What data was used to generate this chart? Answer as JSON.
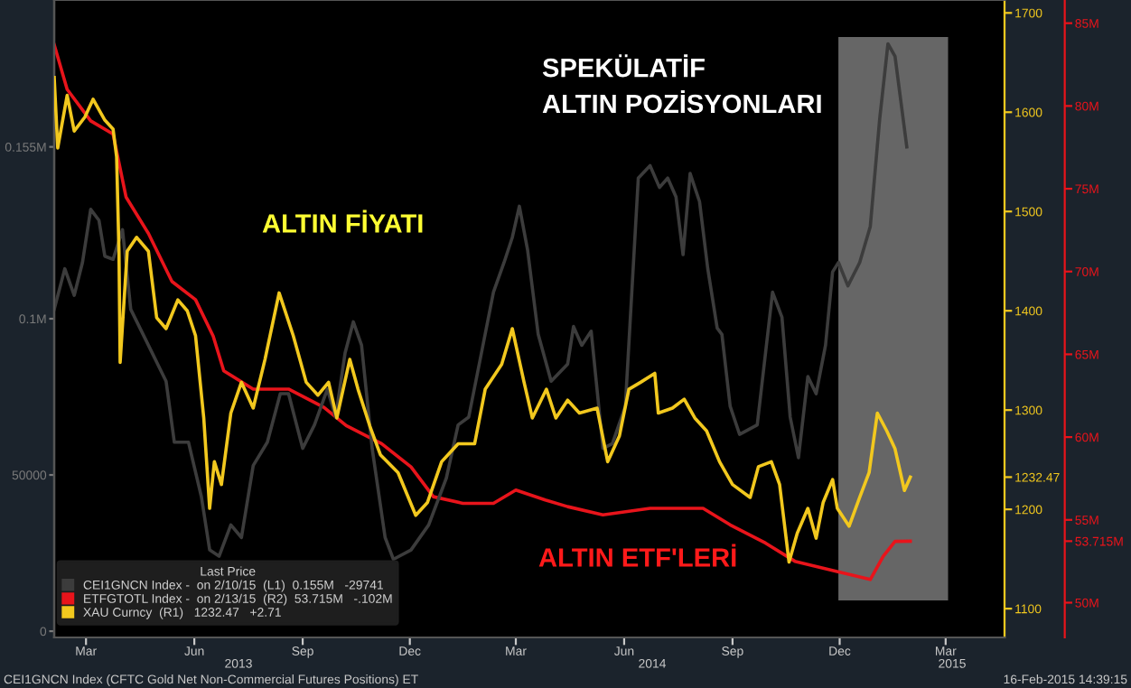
{
  "chart_data": {
    "type": "line",
    "annotations": [
      "SPEKÜLATİF\nALTIN POZİSYONLARI",
      "ALTIN FİYATI",
      "ALTIN ETF'LERİ",
      "2013",
      "2014",
      "2015",
      "CEI1GNCN Index (CFTC Gold Net Non-Commercial Futures Positions) ET",
      "16-Feb-2015 14:39:15"
    ],
    "legend": "bottom left",
    "legend_title": "Last Price",
    "xlim": [
      "2013-02-16",
      "2015-05-04"
    ],
    "xticks": [
      {
        "value": "2013-03-15",
        "label": "Mar"
      },
      {
        "value": "2013-06-15",
        "label": "Jun"
      },
      {
        "value": "2013-09-15",
        "label": "Sep"
      },
      {
        "value": "2013-12-15",
        "label": "Dec"
      },
      {
        "value": "2014-03-15",
        "label": "Mar"
      },
      {
        "value": "2014-06-15",
        "label": "Jun"
      },
      {
        "value": "2014-09-15",
        "label": "Sep"
      },
      {
        "value": "2014-12-15",
        "label": "Dec"
      },
      {
        "value": "2015-03-15",
        "label": "Mar"
      }
    ],
    "ylim": [
      -2000,
      202000
    ],
    "yticks": [
      0,
      50000,
      {
        "value": 100000,
        "label": "0.1M"
      },
      {
        "value": 155000,
        "label": "0.155M"
      }
    ],
    "y2lim": [
      1071,
      1713
    ],
    "y2ticks": [
      1100,
      1200,
      1232.47,
      1300,
      1400,
      1500,
      1600,
      1700
    ],
    "y3lim": [
      47.9,
      86.4
    ],
    "y3ticks": [
      {
        "value": 50,
        "label": "50M"
      },
      {
        "value": 53.715,
        "label": "53.715M"
      },
      {
        "value": 55,
        "label": "55M"
      },
      {
        "value": 60,
        "label": "60M"
      },
      {
        "value": 65,
        "label": "65M"
      },
      {
        "value": 70,
        "label": "70M"
      },
      {
        "value": 75,
        "label": "75M"
      },
      {
        "value": 80,
        "label": "80M"
      },
      {
        "value": 85,
        "label": "85M"
      }
    ],
    "bands": [
      {
        "axis": "x",
        "from": "2014-12-15",
        "to": "2015-03-16",
        "color": "#ffffff"
      }
    ],
    "series": [
      {
        "name": "CEI1GNCN Index -  on 2/10/15  (L1)  0.155M   -29741",
        "color": "#3c3c3c",
        "x": [
          "2013-02-16",
          "2013-02-25",
          "2013-03-05",
          "2013-03-12",
          "2013-03-19",
          "2013-03-26",
          "2013-03-31",
          "2013-04-07",
          "2013-04-15",
          "2013-04-22",
          "2013-05-07",
          "2013-05-22",
          "2013-05-29",
          "2013-06-10",
          "2013-06-21",
          "2013-06-28",
          "2013-07-06",
          "2013-07-16",
          "2013-07-25",
          "2013-08-04",
          "2013-08-16",
          "2013-08-27",
          "2013-09-03",
          "2013-09-15",
          "2013-09-25",
          "2013-10-06",
          "2013-10-13",
          "2013-10-21",
          "2013-10-28",
          "2013-11-04",
          "2013-11-13",
          "2013-11-24",
          "2013-12-01",
          "2013-12-16",
          "2013-12-31",
          "2014-01-15",
          "2014-01-25",
          "2014-02-03",
          "2014-02-13",
          "2014-02-24",
          "2014-03-05",
          "2014-03-12",
          "2014-03-18",
          "2014-03-25",
          "2014-04-03",
          "2014-04-14",
          "2014-04-28",
          "2014-05-03",
          "2014-05-10",
          "2014-05-18",
          "2014-05-28",
          "2014-06-05",
          "2014-06-16",
          "2014-06-27",
          "2014-07-07",
          "2014-07-15",
          "2014-07-22",
          "2014-07-29",
          "2014-08-04",
          "2014-08-10",
          "2014-08-18",
          "2014-08-25",
          "2014-09-02",
          "2014-09-06",
          "2014-09-13",
          "2014-09-21",
          "2014-10-06",
          "2014-10-19",
          "2014-10-27",
          "2014-11-03",
          "2014-11-10",
          "2014-11-18",
          "2014-11-25",
          "2014-12-03",
          "2014-12-09",
          "2014-12-14",
          "2014-12-22",
          "2015-01-01",
          "2015-01-10",
          "2015-01-18",
          "2015-01-25",
          "2015-01-31",
          "2015-02-10"
        ],
        "values": [
          103000,
          116000,
          107500,
          118000,
          135000,
          131500,
          120000,
          119000,
          128500,
          103000,
          91500,
          80000,
          60500,
          60500,
          43000,
          26000,
          24000,
          34000,
          30000,
          53000,
          60500,
          76000,
          76000,
          58500,
          66000,
          77500,
          68500,
          89000,
          99000,
          91500,
          58500,
          30000,
          23000,
          26000,
          34000,
          49000,
          66000,
          68500,
          87500,
          108500,
          118000,
          126000,
          136000,
          122000,
          95000,
          80000,
          85500,
          97500,
          91500,
          96000,
          58500,
          60000,
          72000,
          145000,
          149000,
          142000,
          145000,
          139000,
          120500,
          146500,
          137500,
          116000,
          97000,
          95000,
          72000,
          63000,
          66000,
          108500,
          100500,
          68500,
          55500,
          81500,
          76000,
          91500,
          115000,
          118000,
          110500,
          118000,
          129500,
          164000,
          188000,
          184000,
          155000
        ]
      },
      {
        "name": "ETFGTOTL Index -  on 2/13/15  (R2)  53.715M   -.102M",
        "color": "#e8141b",
        "axis": "y3",
        "x": [
          "2013-02-16",
          "2013-02-27",
          "2013-03-19",
          "2013-04-07",
          "2013-04-18",
          "2013-05-07",
          "2013-05-27",
          "2013-06-16",
          "2013-07-01",
          "2013-07-10",
          "2013-08-04",
          "2013-09-03",
          "2013-10-03",
          "2013-10-22",
          "2013-11-21",
          "2013-12-16",
          "2014-01-04",
          "2014-01-29",
          "2014-02-24",
          "2014-03-15",
          "2014-04-09",
          "2014-04-28",
          "2014-05-28",
          "2014-07-07",
          "2014-08-21",
          "2014-09-13",
          "2014-10-13",
          "2014-11-07",
          "2014-12-12",
          "2015-01-10",
          "2015-01-21",
          "2015-01-31",
          "2015-02-13"
        ],
        "values": [
          83.7,
          81.0,
          79.1,
          78.3,
          74.5,
          72.3,
          69.4,
          68.3,
          66.1,
          64.0,
          62.9,
          62.9,
          61.8,
          60.7,
          59.6,
          58.2,
          56.4,
          56.0,
          56.0,
          56.8,
          56.2,
          55.8,
          55.3,
          55.7,
          55.7,
          54.7,
          53.6,
          52.5,
          51.9,
          51.4,
          52.8,
          53.7,
          53.715
        ]
      },
      {
        "name": "XAU Curncy  (R1)   1232.47   +2.71",
        "color": "#f2c81e",
        "axis": "y2",
        "x": [
          "2013-02-16",
          "2013-02-19",
          "2013-02-27",
          "2013-03-05",
          "2013-03-14",
          "2013-03-21",
          "2013-03-31",
          "2013-04-07",
          "2013-04-10",
          "2013-04-12",
          "2013-04-13",
          "2013-04-19",
          "2013-04-27",
          "2013-05-07",
          "2013-05-14",
          "2013-05-22",
          "2013-06-01",
          "2013-06-09",
          "2013-06-16",
          "2013-06-23",
          "2013-06-28",
          "2013-07-02",
          "2013-07-08",
          "2013-07-16",
          "2013-07-25",
          "2013-08-04",
          "2013-08-14",
          "2013-08-26",
          "2013-09-07",
          "2013-09-18",
          "2013-09-28",
          "2013-10-07",
          "2013-10-14",
          "2013-10-25",
          "2013-11-01",
          "2013-11-11",
          "2013-11-20",
          "2013-12-05",
          "2013-12-20",
          "2013-12-30",
          "2014-01-11",
          "2014-01-25",
          "2014-02-08",
          "2014-02-17",
          "2014-03-03",
          "2014-03-12",
          "2014-03-22",
          "2014-03-29",
          "2014-04-10",
          "2014-04-18",
          "2014-04-28",
          "2014-05-08",
          "2014-05-23",
          "2014-06-01",
          "2014-06-11",
          "2014-06-19",
          "2014-06-29",
          "2014-07-11",
          "2014-07-14",
          "2014-07-26",
          "2014-08-05",
          "2014-08-14",
          "2014-08-24",
          "2014-09-04",
          "2014-09-15",
          "2014-09-30",
          "2014-10-07",
          "2014-10-18",
          "2014-10-25",
          "2014-11-02",
          "2014-11-09",
          "2014-11-18",
          "2014-11-25",
          "2014-12-01",
          "2014-12-09",
          "2014-12-13",
          "2014-12-23",
          "2015-01-01",
          "2015-01-09",
          "2015-01-16",
          "2015-01-24",
          "2015-01-31",
          "2015-02-08",
          "2015-02-13"
        ],
        "values": [
          1635,
          1564,
          1617,
          1581,
          1595,
          1613,
          1592,
          1583,
          1555,
          1460,
          1348,
          1460,
          1474,
          1460,
          1393,
          1382,
          1411,
          1400,
          1375,
          1292,
          1201,
          1248,
          1225,
          1297,
          1328,
          1302,
          1351,
          1418,
          1375,
          1328,
          1315,
          1328,
          1292,
          1351,
          1321,
          1284,
          1255,
          1237,
          1194,
          1207,
          1248,
          1266,
          1266,
          1321,
          1346,
          1382,
          1328,
          1292,
          1321,
          1292,
          1310,
          1297,
          1302,
          1248,
          1274,
          1321,
          1328,
          1337,
          1297,
          1302,
          1311,
          1292,
          1279,
          1248,
          1225,
          1212,
          1243,
          1248,
          1225,
          1147,
          1176,
          1201,
          1171,
          1207,
          1230,
          1201,
          1183,
          1212,
          1237,
          1297,
          1279,
          1261,
          1219,
          1232.47
        ]
      }
    ]
  }
}
